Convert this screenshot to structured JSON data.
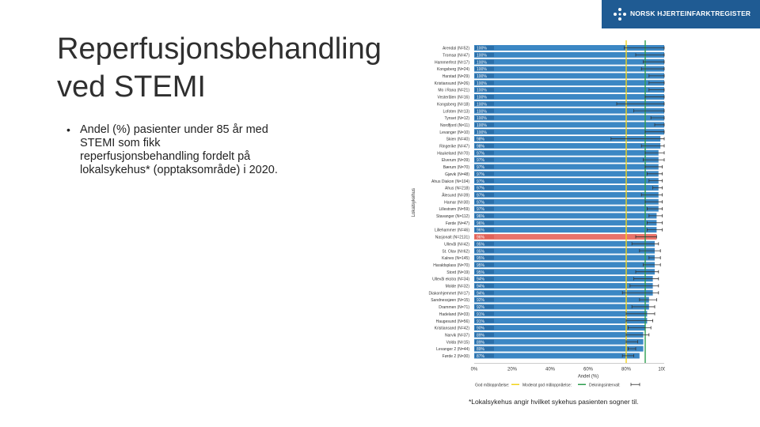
{
  "slide": {
    "title_line1": "Reperfusjonsbehandling",
    "title_line2": "ved STEMI",
    "bullet": "Andel (%) pasienter under 85 år med STEMI som fikk reperfusjonsbehandling fordelt på lokalsykehus* (opptaksområde) i 2020.",
    "footnote": "*Lokalsykehus angir hvilket sykehus pasienten sogner til."
  },
  "logo": {
    "text": "NORSK HJERTEINFARKTREGISTER",
    "icon": "heart-network-icon"
  },
  "colors": {
    "bar": "#3b87c4",
    "bar_highlight": "#e8736a",
    "label_bg": "#1f5b93",
    "yellow": "#f2d31b",
    "green": "#2e9e4f",
    "error": "#333333"
  },
  "chart_data": {
    "type": "bar",
    "orientation": "horizontal",
    "ylabel": "Lokalsykehus",
    "xlabel": "Andel (%)",
    "xlim": [
      0,
      100
    ],
    "xticks": [
      "0%",
      "20%",
      "40%",
      "60%",
      "80%",
      "100%"
    ],
    "tick_values": [
      0,
      20,
      40,
      60,
      80,
      100
    ],
    "thresholds": {
      "moderat": 80,
      "god": 90
    },
    "legend": {
      "good": "God måloppnåelse:",
      "moderate": "Moderat god måloppnåelse:",
      "ci": "Dekningsintervall:"
    },
    "highlight": "Nasjonalt (N=2131)",
    "categories": [
      "Arendal (N=52)",
      "Tromsø (N=47)",
      "Hammerfest (N=17)",
      "Kongsberg (N=24)",
      "Harstad (N=29)",
      "Kristiansund (N=26)",
      "Mo i Rana (N=21)",
      "Vesterålen (N=16)",
      "Kongsberg (N=18)",
      "Lofoten (N=13)",
      "Tynset (N=12)",
      "Nordfjord (N=11)",
      "Levanger (N=10)",
      "Skien (N=40)",
      "Ringerike (N=47)",
      "Haukeland (N=70)",
      "Elverum (N=39)",
      "Bærum (N=70)",
      "Gjøvik (N=48)",
      "Ahus Diakon (N=104)",
      "Ahus (N=218)",
      "Ålesund (N=39)",
      "Hamar (N=30)",
      "Lillestrøm (N=59)",
      "Stavanger (N=112)",
      "Førde (N=47)",
      "Lillehammer (N=46)",
      "Nasjonalt (N=2131)",
      "Ullevål (N=42)",
      "St. Olav (N=62)",
      "Kalnes (N=145)",
      "Haraldsplass (N=70)",
      "Stord (N=19)",
      "Ullevål ekstra (N=34)",
      "Molde (N=32)",
      "Diakonhjemmet (N=17)",
      "Sandnessjøen (N=15)",
      "Drammen (N=71)",
      "Hadeland (N=33)",
      "Haugesund (N=56)",
      "Kristiansand (N=42)",
      "Narvik (N=37)",
      "Volda (N=15)",
      "Levanger 2 (N=44)",
      "Førde 2 (N=30)"
    ],
    "values": [
      100,
      100,
      100,
      100,
      100,
      100,
      100,
      100,
      100,
      100,
      100,
      100,
      100,
      98,
      98,
      97,
      97,
      97,
      97,
      97,
      97,
      97,
      97,
      97,
      96,
      96,
      96,
      96,
      95,
      95,
      95,
      95,
      95,
      94,
      94,
      94,
      92,
      92,
      91,
      91,
      90,
      89,
      89,
      89,
      87
    ],
    "value_labels": [
      "100%",
      "100%",
      "100%",
      "100%",
      "100%",
      "100%",
      "100%",
      "100%",
      "100%",
      "100%",
      "100%",
      "100%",
      "100%",
      "98%",
      "98%",
      "97%",
      "97%",
      "97%",
      "97%",
      "97%",
      "97%",
      "97%",
      "97%",
      "97%",
      "96%",
      "96%",
      "96%",
      "96%",
      "95%",
      "95%",
      "95%",
      "95%",
      "95%",
      "94%",
      "94%",
      "94%",
      "92%",
      "92%",
      "91%",
      "91%",
      "90%",
      "89%",
      "89%",
      "89%",
      "87%"
    ],
    "ci_low": [
      79,
      85,
      89,
      88,
      92,
      92,
      92,
      90,
      75,
      84,
      93,
      95,
      90,
      72,
      88,
      90,
      89,
      90,
      91,
      92,
      94,
      88,
      90,
      91,
      92,
      91,
      91,
      85,
      83,
      87,
      92,
      89,
      85,
      84,
      82,
      78,
      87,
      83,
      80,
      80,
      81,
      80,
      80,
      81,
      78
    ],
    "ci_high": [
      100,
      100,
      100,
      100,
      100,
      100,
      100,
      100,
      100,
      100,
      100,
      100,
      100,
      100,
      100,
      100,
      100,
      99,
      99,
      99,
      99,
      99,
      99,
      99,
      99,
      99,
      99,
      96,
      97,
      98,
      98,
      98,
      97,
      97,
      97,
      97,
      96,
      95,
      95,
      94,
      93,
      92,
      86,
      85,
      84
    ]
  }
}
